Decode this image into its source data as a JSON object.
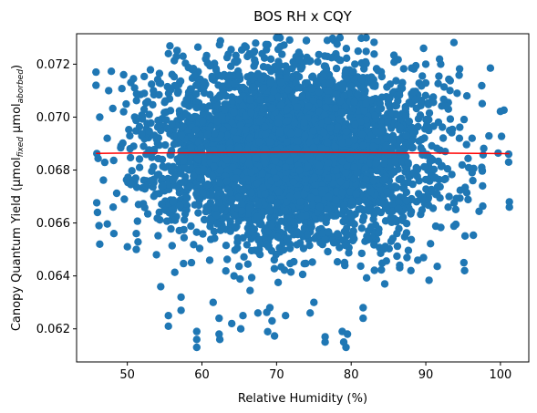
{
  "chart_data": {
    "type": "scatter",
    "title": "BOS RH x CQY",
    "xlabel": "Relative Humidity (%)",
    "ylabel": {
      "main": "Canopy Quantum Yield (μmol",
      "sub1": "fixed",
      "mid": " μmol",
      "sub2": "aborbed",
      "end": ")"
    },
    "xlim": [
      43.2,
      103.8
    ],
    "ylim": [
      0.06075,
      0.07315
    ],
    "xticks": [
      50,
      60,
      70,
      80,
      90,
      100
    ],
    "xtick_labels": [
      "50",
      "60",
      "70",
      "80",
      "90",
      "100"
    ],
    "yticks": [
      0.062,
      0.064,
      0.066,
      0.068,
      0.07,
      0.072
    ],
    "ytick_labels": [
      "0.062",
      "0.064",
      "0.066",
      "0.068",
      "0.070",
      "0.072"
    ],
    "grid": false,
    "colors": {
      "points": "#1f77b4",
      "trend": "#ff0000"
    },
    "scatter_summary": {
      "count": 4500,
      "x_center": 72.2,
      "x_spread": 9.0,
      "y_center": 0.0687,
      "y_spread": 0.0017,
      "x_range": [
        45.8,
        101.2
      ],
      "y_range": [
        0.0613,
        0.073
      ]
    },
    "notable_points": [
      {
        "x": 45.8,
        "y": 0.0717
      },
      {
        "x": 45.8,
        "y": 0.0712
      },
      {
        "x": 46.3,
        "y": 0.07
      },
      {
        "x": 46.0,
        "y": 0.0664
      },
      {
        "x": 46.2,
        "y": 0.0659
      },
      {
        "x": 46.3,
        "y": 0.0652
      },
      {
        "x": 47.5,
        "y": 0.071
      },
      {
        "x": 47.3,
        "y": 0.0692
      },
      {
        "x": 48.1,
        "y": 0.0666
      },
      {
        "x": 48.2,
        "y": 0.0656
      },
      {
        "x": 49.5,
        "y": 0.0716
      },
      {
        "x": 49.5,
        "y": 0.0702
      },
      {
        "x": 49.6,
        "y": 0.0669
      },
      {
        "x": 50.0,
        "y": 0.0651
      },
      {
        "x": 51.5,
        "y": 0.0667
      },
      {
        "x": 51.2,
        "y": 0.0656
      },
      {
        "x": 51.2,
        "y": 0.065
      },
      {
        "x": 53.5,
        "y": 0.071
      },
      {
        "x": 53.9,
        "y": 0.0648
      },
      {
        "x": 55.5,
        "y": 0.0724
      },
      {
        "x": 55.5,
        "y": 0.0625
      },
      {
        "x": 55.5,
        "y": 0.0621
      },
      {
        "x": 57.2,
        "y": 0.0632
      },
      {
        "x": 57.2,
        "y": 0.0627
      },
      {
        "x": 58.6,
        "y": 0.0645
      },
      {
        "x": 59.3,
        "y": 0.0619
      },
      {
        "x": 59.3,
        "y": 0.0616
      },
      {
        "x": 59.3,
        "y": 0.0613
      },
      {
        "x": 61.5,
        "y": 0.063
      },
      {
        "x": 62.3,
        "y": 0.0624
      },
      {
        "x": 62.3,
        "y": 0.0618
      },
      {
        "x": 62.4,
        "y": 0.0616
      },
      {
        "x": 64.0,
        "y": 0.0622
      },
      {
        "x": 65.5,
        "y": 0.0625
      },
      {
        "x": 65.2,
        "y": 0.062
      },
      {
        "x": 67.5,
        "y": 0.0626
      },
      {
        "x": 69.1,
        "y": 0.0628
      },
      {
        "x": 69.4,
        "y": 0.0623
      },
      {
        "x": 70.0,
        "y": 0.073
      },
      {
        "x": 71.2,
        "y": 0.0625
      },
      {
        "x": 74.5,
        "y": 0.0626
      },
      {
        "x": 74.0,
        "y": 0.0729
      },
      {
        "x": 75.0,
        "y": 0.063
      },
      {
        "x": 76.5,
        "y": 0.0617
      },
      {
        "x": 76.5,
        "y": 0.0615
      },
      {
        "x": 76.8,
        "y": 0.0729
      },
      {
        "x": 78.5,
        "y": 0.073
      },
      {
        "x": 78.8,
        "y": 0.0619
      },
      {
        "x": 79.0,
        "y": 0.0615
      },
      {
        "x": 79.3,
        "y": 0.0613
      },
      {
        "x": 79.5,
        "y": 0.0618
      },
      {
        "x": 81.6,
        "y": 0.0628
      },
      {
        "x": 81.6,
        "y": 0.0624
      },
      {
        "x": 82.0,
        "y": 0.073
      },
      {
        "x": 84.5,
        "y": 0.0637
      },
      {
        "x": 86.5,
        "y": 0.0644
      },
      {
        "x": 88.0,
        "y": 0.0642
      },
      {
        "x": 89.7,
        "y": 0.0726
      },
      {
        "x": 90.0,
        "y": 0.072
      },
      {
        "x": 91.5,
        "y": 0.0671
      },
      {
        "x": 92.0,
        "y": 0.072
      },
      {
        "x": 92.6,
        "y": 0.0687
      },
      {
        "x": 93.0,
        "y": 0.0666
      },
      {
        "x": 94.2,
        "y": 0.0709
      },
      {
        "x": 94.5,
        "y": 0.0692
      },
      {
        "x": 95.1,
        "y": 0.0645
      },
      {
        "x": 95.2,
        "y": 0.0642
      },
      {
        "x": 95.5,
        "y": 0.0708
      },
      {
        "x": 96.2,
        "y": 0.0692
      },
      {
        "x": 96.2,
        "y": 0.0679
      },
      {
        "x": 96.3,
        "y": 0.0676
      },
      {
        "x": 97.5,
        "y": 0.0681
      },
      {
        "x": 97.6,
        "y": 0.0674
      },
      {
        "x": 101.1,
        "y": 0.0686
      },
      {
        "x": 101.1,
        "y": 0.0683
      },
      {
        "x": 101.2,
        "y": 0.0668
      },
      {
        "x": 101.2,
        "y": 0.0666
      }
    ],
    "trend_line": {
      "x": [
        45.8,
        72.0,
        101.2
      ],
      "y": [
        0.06863,
        0.06868,
        0.06862
      ]
    }
  }
}
